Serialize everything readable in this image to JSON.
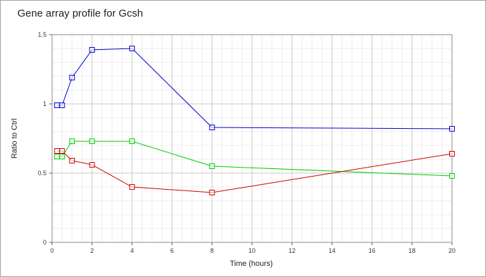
{
  "chart_data": {
    "type": "line",
    "title": "Gene array profile for Gcsh",
    "xlabel": "Time (hours)",
    "ylabel": "Ratio to Ctrl",
    "xlim": [
      0,
      20
    ],
    "ylim": [
      0,
      1.5
    ],
    "x_ticks": [
      "0",
      "2",
      "4",
      "6",
      "8",
      "10",
      "12",
      "14",
      "16",
      "18",
      "20"
    ],
    "y_ticks": [
      "0",
      "0.5",
      "1",
      "1.5"
    ],
    "grid": true,
    "legend": "none",
    "marker": "square",
    "series": [
      {
        "color": "#0000cc",
        "x": [
          0.25,
          0.5,
          1,
          2,
          4,
          8,
          20
        ],
        "y": [
          0.99,
          0.99,
          1.19,
          1.39,
          1.4,
          0.83,
          0.82
        ]
      },
      {
        "color": "#00cc00",
        "x": [
          0.25,
          0.5,
          1,
          2,
          4,
          8,
          20
        ],
        "y": [
          0.62,
          0.62,
          0.73,
          0.73,
          0.73,
          0.55,
          0.48
        ]
      },
      {
        "color": "#cc0000",
        "x": [
          0.25,
          0.5,
          1,
          2,
          4,
          8,
          20
        ],
        "y": [
          0.66,
          0.66,
          0.59,
          0.56,
          0.4,
          0.36,
          0.64
        ]
      }
    ]
  }
}
